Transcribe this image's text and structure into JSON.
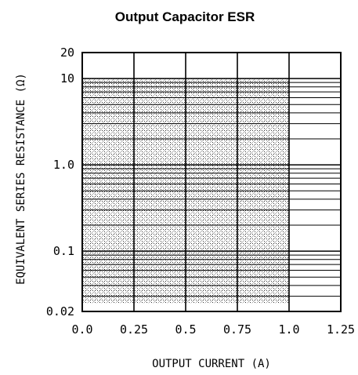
{
  "chart_data": {
    "type": "area",
    "title": "Output Capacitor ESR",
    "xlabel": "OUTPUT CURRENT (A)",
    "ylabel": "EQUIVALENT SERIES RESISTANCE (Ω)",
    "x_scale": "linear",
    "y_scale": "log",
    "xlim": [
      0,
      1.25
    ],
    "ylim": [
      0.02,
      20
    ],
    "x_ticks": [
      {
        "value": 0,
        "label": "0.0"
      },
      {
        "value": 0.25,
        "label": "0.25"
      },
      {
        "value": 0.5,
        "label": "0.5"
      },
      {
        "value": 0.75,
        "label": "0.75"
      },
      {
        "value": 1.0,
        "label": "1.0"
      },
      {
        "value": 1.25,
        "label": "1.25"
      }
    ],
    "y_ticks": [
      {
        "value": 20,
        "label": "20"
      },
      {
        "value": 10,
        "label": "10"
      },
      {
        "value": 1,
        "label": "1.0"
      },
      {
        "value": 0.1,
        "label": "0.1"
      },
      {
        "value": 0.02,
        "label": "0.02"
      }
    ],
    "grid": true,
    "region": {
      "x": [
        0,
        1.0
      ],
      "y": [
        0.025,
        10
      ],
      "fill": "stippled"
    }
  }
}
